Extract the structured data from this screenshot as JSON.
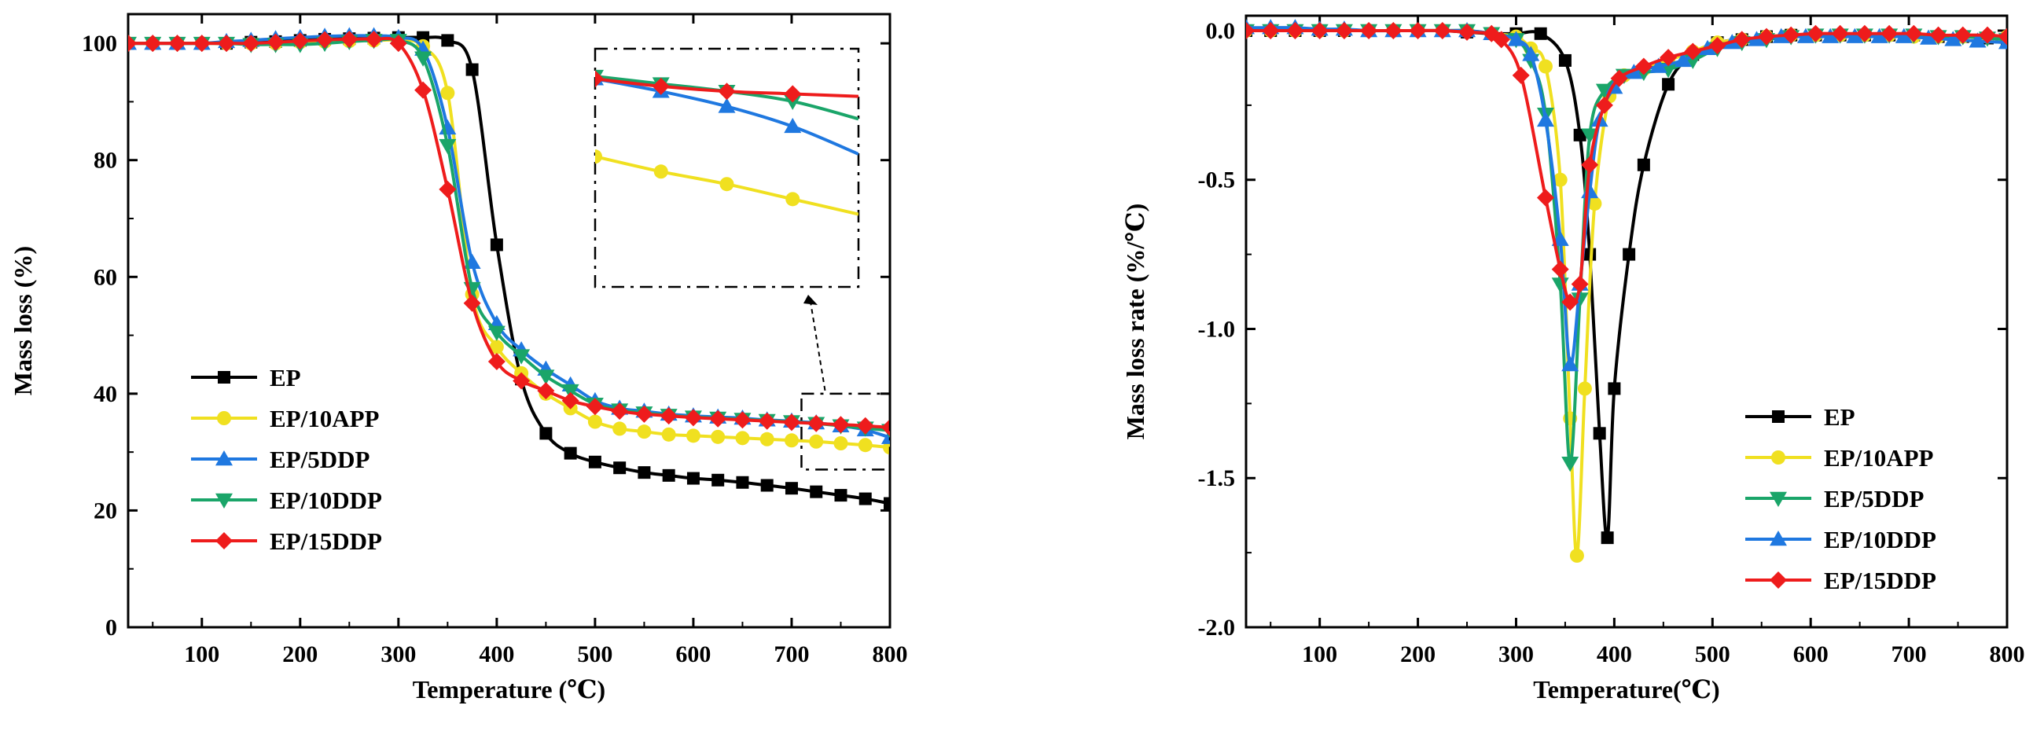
{
  "chart_data": [
    {
      "type": "line",
      "xlabel": "Temperature (℃)",
      "ylabel": "Mass loss (%)",
      "xlim": [
        25,
        800
      ],
      "ylim": [
        0,
        105
      ],
      "xticks": [
        100,
        200,
        300,
        400,
        500,
        600,
        700,
        800
      ],
      "yticks": [
        0,
        20,
        40,
        60,
        80,
        100
      ],
      "legend_position": "center-left",
      "inset": {
        "description_source": "zoomed view of 700–800 °C region",
        "box_x_range": [
          710,
          800
        ],
        "box_y_range": [
          27,
          40
        ]
      },
      "series": [
        {
          "name": "EP",
          "color": "#000000",
          "marker": "square",
          "x": [
            25,
            50,
            75,
            100,
            125,
            150,
            175,
            200,
            225,
            250,
            275,
            300,
            325,
            350,
            375,
            400,
            425,
            450,
            475,
            500,
            525,
            550,
            575,
            600,
            625,
            650,
            675,
            700,
            725,
            750,
            775,
            800
          ],
          "y": [
            100,
            100,
            100,
            100,
            100,
            100.2,
            100.3,
            100.5,
            100.7,
            100.8,
            100.9,
            101,
            101,
            100.5,
            95.5,
            65.5,
            42.5,
            33.2,
            29.8,
            28.3,
            27.3,
            26.5,
            26,
            25.5,
            25.2,
            24.8,
            24.3,
            23.8,
            23.2,
            22.6,
            22,
            21.2
          ]
        },
        {
          "name": "EP/10APP",
          "color": "#f0e020",
          "marker": "circle",
          "x": [
            25,
            50,
            75,
            100,
            125,
            150,
            175,
            200,
            225,
            250,
            275,
            300,
            325,
            350,
            375,
            400,
            425,
            450,
            475,
            500,
            525,
            550,
            575,
            600,
            625,
            650,
            675,
            700,
            725,
            750,
            775,
            800
          ],
          "y": [
            100,
            100,
            100,
            100,
            100,
            100,
            100,
            100.2,
            100.3,
            100.4,
            100.5,
            100.5,
            99.5,
            91.5,
            57,
            48,
            43.5,
            40,
            37.5,
            35.2,
            34,
            33.5,
            33,
            32.8,
            32.6,
            32.4,
            32.2,
            32,
            31.8,
            31.5,
            31.2,
            30.8
          ]
        },
        {
          "name": "EP/5DDP",
          "color": "#1f78e0",
          "marker": "triangle-up",
          "x": [
            25,
            50,
            75,
            100,
            125,
            150,
            175,
            200,
            225,
            250,
            275,
            300,
            325,
            350,
            375,
            400,
            425,
            450,
            475,
            500,
            525,
            550,
            575,
            600,
            625,
            650,
            675,
            700,
            725,
            750,
            775,
            800
          ],
          "y": [
            100,
            100,
            100,
            100,
            100.3,
            100.5,
            100.8,
            101,
            101.2,
            101.3,
            101.3,
            101,
            99,
            85.5,
            62.5,
            52,
            47.5,
            44.2,
            41.5,
            38.8,
            37.5,
            37,
            36.5,
            36.2,
            36,
            35.8,
            35.5,
            35.3,
            35,
            34.5,
            33.8,
            32.5
          ]
        },
        {
          "name": "EP/10DDP",
          "color": "#1aa569",
          "marker": "triangle-down",
          "x": [
            25,
            50,
            75,
            100,
            125,
            150,
            175,
            200,
            225,
            250,
            275,
            300,
            325,
            350,
            375,
            400,
            425,
            450,
            475,
            500,
            525,
            550,
            575,
            600,
            625,
            650,
            675,
            700,
            725,
            750,
            775,
            800
          ],
          "y": [
            100,
            100,
            100,
            100,
            100,
            99.8,
            99.8,
            99.8,
            100,
            100.3,
            100.5,
            100.5,
            97.5,
            82.5,
            58,
            50.5,
            46.5,
            43,
            40.5,
            38.2,
            37.2,
            36.7,
            36.3,
            36,
            35.8,
            35.6,
            35.4,
            35.2,
            34.9,
            34.5,
            34.1,
            33.7
          ]
        },
        {
          "name": "EP/15DDP",
          "color": "#ee1c1c",
          "marker": "diamond",
          "x": [
            25,
            50,
            75,
            100,
            125,
            150,
            175,
            200,
            225,
            250,
            275,
            300,
            325,
            350,
            375,
            400,
            425,
            450,
            475,
            500,
            525,
            550,
            575,
            600,
            625,
            650,
            675,
            700,
            725,
            750,
            775,
            800
          ],
          "y": [
            100,
            100,
            100,
            100,
            100,
            100,
            100.2,
            100.4,
            100.6,
            100.7,
            100.7,
            100,
            92,
            75,
            55.5,
            45.5,
            42.2,
            40.5,
            38.8,
            37.8,
            37,
            36.5,
            36.2,
            35.9,
            35.7,
            35.5,
            35.3,
            35.1,
            34.9,
            34.7,
            34.5,
            34.2
          ]
        }
      ]
    },
    {
      "type": "line",
      "xlabel": "Temperature(℃)",
      "ylabel": "Mass loss rate (%/℃)",
      "xlim": [
        25,
        800
      ],
      "ylim": [
        -2.0,
        0.05
      ],
      "xticks": [
        100,
        200,
        300,
        400,
        500,
        600,
        700,
        800
      ],
      "yticks": [
        0.0,
        -0.5,
        -1.0,
        -1.5,
        -2.0
      ],
      "ytick_labels": [
        "0.0",
        "-0.5",
        "-1.0",
        "-1.5",
        "-2.0"
      ],
      "legend_position": "bottom-right",
      "series": [
        {
          "name": "EP",
          "color": "#000000",
          "marker": "square",
          "x": [
            25,
            50,
            75,
            100,
            125,
            150,
            175,
            200,
            225,
            250,
            275,
            300,
            325,
            350,
            365,
            375,
            385,
            393,
            400,
            415,
            430,
            455,
            480,
            505,
            530,
            555,
            580,
            605,
            630,
            655,
            680,
            705,
            730,
            755,
            780,
            800
          ],
          "y": [
            0,
            0,
            0,
            0,
            0,
            0,
            0,
            0,
            0,
            -0.005,
            -0.01,
            -0.01,
            -0.01,
            -0.1,
            -0.35,
            -0.75,
            -1.35,
            -1.7,
            -1.2,
            -0.75,
            -0.45,
            -0.18,
            -0.08,
            -0.04,
            -0.03,
            -0.02,
            -0.015,
            -0.015,
            -0.015,
            -0.015,
            -0.015,
            -0.015,
            -0.02,
            -0.02,
            -0.025,
            -0.03
          ]
        },
        {
          "name": "EP/10APP",
          "color": "#f0e020",
          "marker": "circle",
          "x": [
            25,
            50,
            75,
            100,
            125,
            150,
            175,
            200,
            225,
            250,
            275,
            300,
            315,
            330,
            345,
            355,
            362,
            370,
            380,
            395,
            410,
            430,
            455,
            480,
            505,
            530,
            555,
            580,
            605,
            630,
            655,
            680,
            705,
            730,
            755,
            780,
            800
          ],
          "y": [
            0,
            0,
            0,
            0,
            0,
            0,
            0,
            0,
            0,
            0,
            -0.01,
            -0.02,
            -0.06,
            -0.12,
            -0.5,
            -1.3,
            -1.76,
            -1.2,
            -0.58,
            -0.22,
            -0.15,
            -0.13,
            -0.1,
            -0.07,
            -0.04,
            -0.03,
            -0.02,
            -0.015,
            -0.015,
            -0.015,
            -0.015,
            -0.015,
            -0.02,
            -0.02,
            -0.02,
            -0.02,
            -0.02
          ]
        },
        {
          "name": "EP/5DDP",
          "color": "#1aa569",
          "marker": "triangle-down",
          "x": [
            25,
            50,
            75,
            100,
            125,
            150,
            175,
            200,
            225,
            250,
            275,
            300,
            315,
            330,
            345,
            355,
            365,
            375,
            390,
            410,
            430,
            455,
            480,
            505,
            530,
            555,
            580,
            605,
            630,
            655,
            680,
            705,
            730,
            755,
            780,
            800
          ],
          "y": [
            0,
            0,
            0,
            0,
            0,
            0,
            0,
            0,
            0,
            0,
            -0.01,
            -0.03,
            -0.1,
            -0.28,
            -0.85,
            -1.45,
            -0.9,
            -0.35,
            -0.2,
            -0.15,
            -0.14,
            -0.13,
            -0.1,
            -0.06,
            -0.04,
            -0.03,
            -0.02,
            -0.015,
            -0.015,
            -0.015,
            -0.015,
            -0.015,
            -0.02,
            -0.02,
            -0.025,
            -0.03
          ]
        },
        {
          "name": "EP/10DDP",
          "color": "#1f78e0",
          "marker": "triangle-up",
          "x": [
            25,
            50,
            75,
            100,
            125,
            150,
            175,
            200,
            225,
            250,
            275,
            300,
            315,
            330,
            345,
            355,
            365,
            375,
            385,
            400,
            420,
            445,
            470,
            495,
            520,
            545,
            570,
            595,
            620,
            645,
            670,
            695,
            720,
            745,
            770,
            800
          ],
          "y": [
            0.01,
            0.01,
            0.01,
            0.005,
            0.005,
            0,
            0,
            0,
            0,
            0,
            -0.01,
            -0.03,
            -0.08,
            -0.3,
            -0.7,
            -1.12,
            -0.85,
            -0.54,
            -0.3,
            -0.19,
            -0.14,
            -0.12,
            -0.1,
            -0.06,
            -0.04,
            -0.03,
            -0.02,
            -0.02,
            -0.02,
            -0.02,
            -0.02,
            -0.02,
            -0.025,
            -0.03,
            -0.035,
            -0.04
          ]
        },
        {
          "name": "EP/15DDP",
          "color": "#ee1c1c",
          "marker": "diamond",
          "x": [
            25,
            50,
            75,
            100,
            125,
            150,
            175,
            200,
            225,
            250,
            275,
            285,
            305,
            330,
            345,
            355,
            365,
            375,
            390,
            405,
            430,
            455,
            480,
            505,
            530,
            555,
            580,
            605,
            630,
            655,
            680,
            705,
            730,
            755,
            780,
            800
          ],
          "y": [
            0,
            0,
            0,
            0,
            0,
            0,
            0,
            0,
            0,
            -0.005,
            -0.01,
            -0.03,
            -0.15,
            -0.56,
            -0.8,
            -0.91,
            -0.85,
            -0.45,
            -0.25,
            -0.16,
            -0.12,
            -0.09,
            -0.07,
            -0.05,
            -0.03,
            -0.02,
            -0.015,
            -0.01,
            -0.01,
            -0.01,
            -0.01,
            -0.01,
            -0.015,
            -0.015,
            -0.015,
            -0.02
          ]
        }
      ]
    }
  ]
}
